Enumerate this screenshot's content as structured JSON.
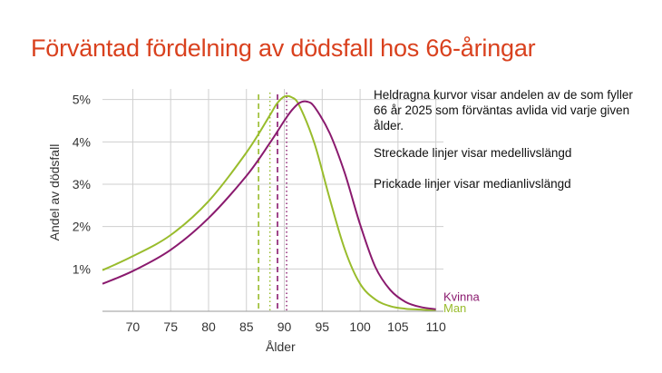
{
  "title": "Förväntad fördelning av dödsfall hos 66-åringar",
  "notes": {
    "line1": "Heldragna kurvor visar andelen av de som fyller 66 år 2025 som förväntas avlida vid varje given ålder.",
    "line2": "Streckade linjer visar medellivslängd",
    "line3": "Prickade linjer visar medianlivslängd"
  },
  "colors": {
    "title": "#d9411e",
    "kvinna": "#8a1a6e",
    "man": "#99bc2c",
    "grid": "#cfcfcf",
    "axis": "#333333"
  },
  "chart_data": {
    "type": "line",
    "xlabel": "Ålder",
    "ylabel": "Andel av dödsfall",
    "xlim": [
      66,
      111
    ],
    "ylim": [
      0,
      5.25
    ],
    "x_ticks": [
      70,
      75,
      80,
      85,
      90,
      95,
      100,
      105,
      110
    ],
    "y_ticks": [
      1,
      2,
      3,
      4,
      5
    ],
    "y_tick_labels": [
      "1%",
      "2%",
      "3%",
      "4%",
      "5%"
    ],
    "grid": true,
    "series": [
      {
        "name": "Kvinna",
        "color": "#8a1a6e",
        "x": [
          66,
          70,
          75,
          80,
          85,
          88,
          90,
          91,
          92,
          93,
          94,
          96,
          98,
          100,
          102,
          104,
          106,
          108,
          110
        ],
        "y": [
          0.65,
          0.95,
          1.45,
          2.2,
          3.2,
          3.95,
          4.5,
          4.75,
          4.92,
          4.95,
          4.82,
          4.2,
          3.25,
          2.05,
          1.05,
          0.5,
          0.22,
          0.1,
          0.05
        ],
        "mean_age": 89.1,
        "median_age": 90.3
      },
      {
        "name": "Man",
        "color": "#99bc2c",
        "x": [
          66,
          70,
          75,
          80,
          85,
          88,
          89,
          90,
          91,
          92,
          94,
          96,
          98,
          100,
          102,
          104,
          106,
          108,
          110
        ],
        "y": [
          0.97,
          1.3,
          1.8,
          2.6,
          3.75,
          4.6,
          4.9,
          5.07,
          5.05,
          4.85,
          3.95,
          2.65,
          1.45,
          0.65,
          0.28,
          0.12,
          0.06,
          0.04,
          0.02
        ],
        "mean_age": 86.6,
        "median_age": 88.1
      }
    ]
  }
}
